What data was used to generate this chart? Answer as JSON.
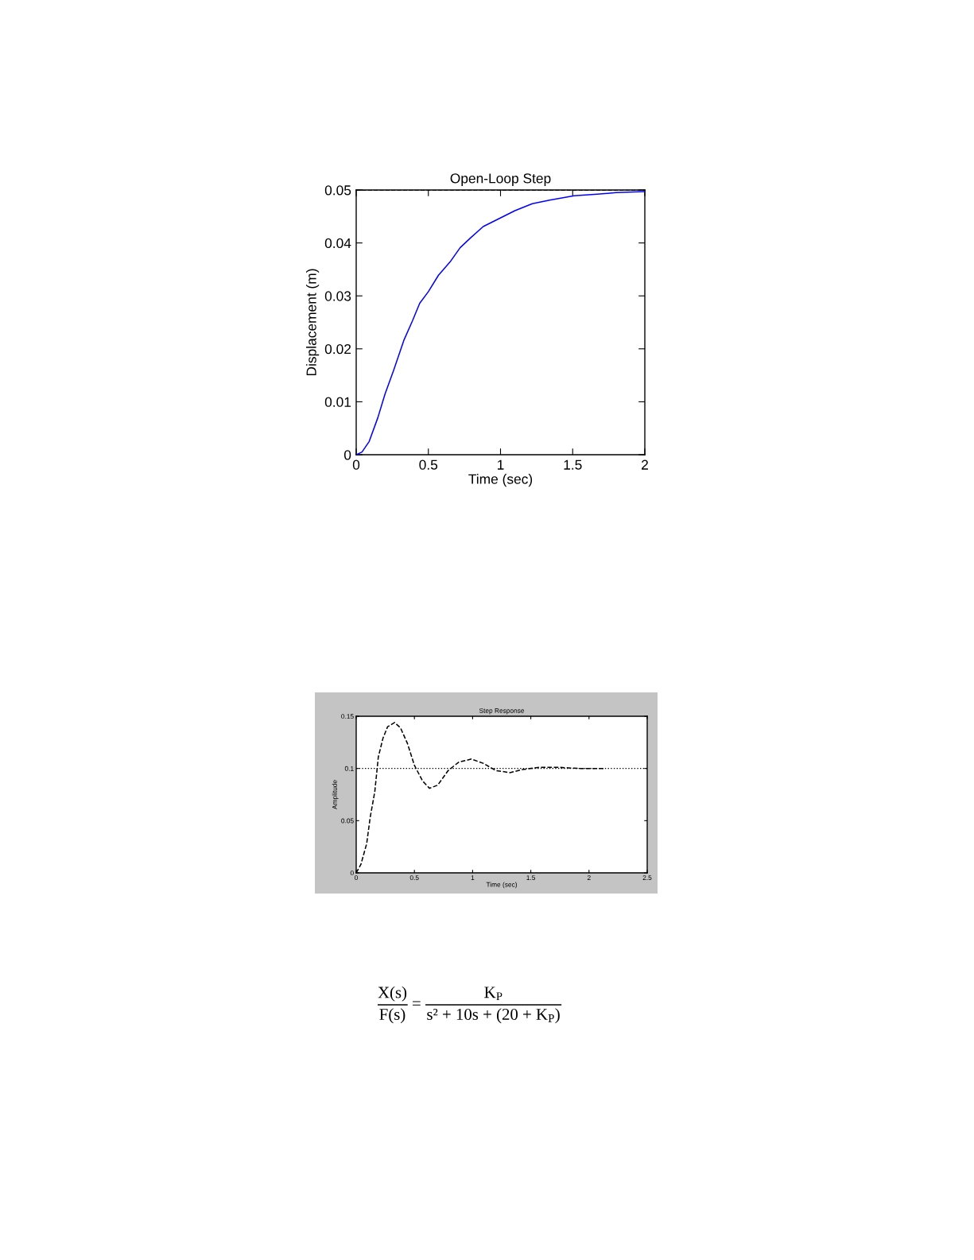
{
  "chart_data": [
    {
      "type": "line",
      "title": "Open-Loop Step",
      "xlabel": "Time (sec)",
      "ylabel": "Displacement (m)",
      "x": [
        0,
        0.04,
        0.09,
        0.15,
        0.2,
        0.26,
        0.33,
        0.39,
        0.44,
        0.5,
        0.57,
        0.65,
        0.72,
        0.79,
        0.88,
        0.99,
        1.1,
        1.22,
        1.34,
        1.51,
        1.67,
        1.8,
        2
      ],
      "series": [
        {
          "color": "#0000ff",
          "values": [
            0,
            0.0005,
            0.0025,
            0.007,
            0.0115,
            0.016,
            0.0216,
            0.0253,
            0.0286,
            0.0308,
            0.0339,
            0.0364,
            0.0391,
            0.0409,
            0.0431,
            0.0446,
            0.0461,
            0.0474,
            0.0481,
            0.0489,
            0.0492,
            0.0495,
            0.0497
          ]
        }
      ],
      "xlim": [
        0,
        2
      ],
      "ylim": [
        0,
        0.05
      ],
      "xticks": [
        0,
        0.5,
        1,
        1.5,
        2
      ],
      "yticks": [
        0,
        0.01,
        0.02,
        0.03,
        0.04,
        0.05
      ],
      "ref_lines": [
        {
          "axis": "y",
          "value": 0.05,
          "color": "#000000",
          "line_style": "dashed"
        }
      ]
    },
    {
      "type": "line",
      "title": "Step Response",
      "xlabel": "Time (sec)",
      "ylabel": "Amplitude",
      "line_style": "dashed",
      "x": [
        0,
        0.04,
        0.09,
        0.12,
        0.16,
        0.19,
        0.23,
        0.27,
        0.33,
        0.38,
        0.44,
        0.5,
        0.57,
        0.63,
        0.7,
        0.79,
        0.88,
        0.99,
        1.09,
        1.2,
        1.32,
        1.43,
        1.57,
        1.75,
        1.91,
        2.14
      ],
      "series": [
        {
          "color": "#000000",
          "values": [
            0,
            0.008,
            0.028,
            0.053,
            0.078,
            0.111,
            0.129,
            0.14,
            0.144,
            0.139,
            0.124,
            0.103,
            0.088,
            0.081,
            0.084,
            0.098,
            0.106,
            0.109,
            0.105,
            0.098,
            0.096,
            0.099,
            0.101,
            0.101,
            0.1,
            0.1
          ]
        }
      ],
      "xlim": [
        0,
        2.5
      ],
      "ylim": [
        0,
        0.15
      ],
      "xticks": [
        0,
        0.5,
        1,
        1.5,
        2,
        2.5
      ],
      "yticks": [
        0,
        0.05,
        0.1,
        0.15
      ],
      "ref_lines": [
        {
          "axis": "y",
          "value": 0.1,
          "color": "#000000",
          "line_style": "dotted"
        }
      ]
    },
    {
      "type": "other",
      "annotations": [
        "X(s)",
        "F(s)",
        "=",
        "K$_{P}$",
        "s² + 10s + (20 + K$_{P}$)"
      ]
    }
  ]
}
